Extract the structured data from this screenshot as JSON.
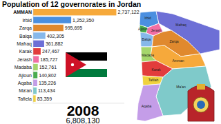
{
  "chart_data": {
    "type": "bar",
    "title": "Population of 12 governorates in Jordan",
    "orientation": "horizontal",
    "categories": [
      "AMMAN",
      "Irbid",
      "Zarqa",
      "Balqa",
      "Mafraq",
      "Karak",
      "Jerash",
      "Madaba",
      "Ajloun",
      "Aqaba",
      "Ma'an",
      "Tafiela"
    ],
    "values": [
      2737122,
      1252350,
      995695,
      402305,
      361882,
      247467,
      185727,
      152761,
      140802,
      135226,
      113434,
      83359
    ],
    "value_labels": [
      "2,737,122",
      "1,252,350",
      "995,695",
      "402,305",
      "361,882",
      "247,467",
      "185,727",
      "152,761",
      "140,802",
      "135,226",
      "113,434",
      "83,359"
    ],
    "colors": [
      "#f6a93b",
      "#4a8fe0",
      "#e0892e",
      "#86b8ea",
      "#6d6fd6",
      "#e23c3c",
      "#f16ea3",
      "#a5d66c",
      "#49ad4e",
      "#c49de8",
      "#7fcaca",
      "#f0d23e"
    ],
    "xlim": [
      0,
      3000000
    ],
    "data_labels": true,
    "tick_labels": false,
    "grid": false,
    "annotations": {
      "year": "2008",
      "total": "6,808,130",
      "map_labels": [
        "Irbid",
        "Ajloun",
        "Jerash",
        "Mafraq",
        "Balqa",
        "Zarqa",
        "Amman",
        "Madaba",
        "Karak",
        "Tafilah",
        "Ma'an",
        "Aqaba"
      ]
    }
  }
}
